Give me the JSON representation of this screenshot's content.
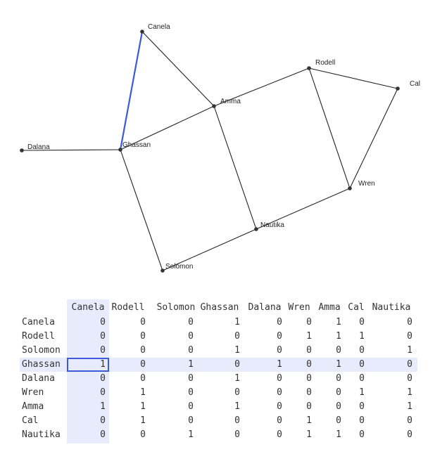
{
  "graph": {
    "nodes": [
      {
        "id": "Canela",
        "label": "Canela"
      },
      {
        "id": "Rodell",
        "label": "Rodell"
      },
      {
        "id": "Solomon",
        "label": "Solomon"
      },
      {
        "id": "Ghassan",
        "label": "Ghassan"
      },
      {
        "id": "Dalana",
        "label": "Dalana"
      },
      {
        "id": "Wren",
        "label": "Wren"
      },
      {
        "id": "Amma",
        "label": "Amma"
      },
      {
        "id": "Cal",
        "label": "Cal"
      },
      {
        "id": "Nautika",
        "label": "Nautika"
      }
    ],
    "edges": [
      [
        "Canela",
        "Ghassan"
      ],
      [
        "Canela",
        "Amma"
      ],
      [
        "Rodell",
        "Amma"
      ],
      [
        "Rodell",
        "Cal"
      ],
      [
        "Rodell",
        "Wren"
      ],
      [
        "Cal",
        "Wren"
      ],
      [
        "Amma",
        "Ghassan"
      ],
      [
        "Amma",
        "Nautika"
      ],
      [
        "Ghassan",
        "Dalana"
      ],
      [
        "Ghassan",
        "Solomon"
      ],
      [
        "Solomon",
        "Nautika"
      ],
      [
        "Wren",
        "Nautika"
      ]
    ],
    "highlighted_edge": [
      "Canela",
      "Ghassan"
    ],
    "highlight_color": "#3b5bdb"
  },
  "matrix": {
    "headers": [
      "Canela",
      "Rodell",
      "Solomon",
      "Ghassan",
      "Dalana",
      "Wren",
      "Amma",
      "Cal",
      "Nautika"
    ],
    "rows": [
      {
        "label": "Canela",
        "values": [
          0,
          0,
          0,
          1,
          0,
          0,
          1,
          0,
          0
        ]
      },
      {
        "label": "Rodell",
        "values": [
          0,
          0,
          0,
          0,
          0,
          1,
          1,
          1,
          0
        ]
      },
      {
        "label": "Solomon",
        "values": [
          0,
          0,
          0,
          1,
          0,
          0,
          0,
          0,
          1
        ]
      },
      {
        "label": "Ghassan",
        "values": [
          1,
          0,
          1,
          0,
          1,
          0,
          1,
          0,
          0
        ]
      },
      {
        "label": "Dalana",
        "values": [
          0,
          0,
          0,
          1,
          0,
          0,
          0,
          0,
          0
        ]
      },
      {
        "label": "Wren",
        "values": [
          0,
          1,
          0,
          0,
          0,
          0,
          0,
          1,
          1
        ]
      },
      {
        "label": "Amma",
        "values": [
          1,
          1,
          0,
          1,
          0,
          0,
          0,
          0,
          1
        ]
      },
      {
        "label": "Cal",
        "values": [
          0,
          1,
          0,
          0,
          0,
          1,
          0,
          0,
          0
        ]
      },
      {
        "label": "Nautika",
        "values": [
          0,
          0,
          1,
          0,
          0,
          1,
          1,
          0,
          0
        ]
      }
    ],
    "highlighted_row": "Ghassan",
    "highlighted_col": "Canela",
    "highlight_color": "#e8ebfb"
  }
}
